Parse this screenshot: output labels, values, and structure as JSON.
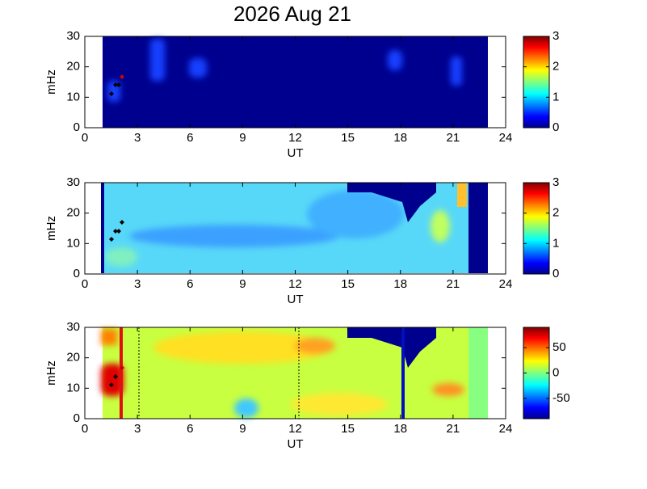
{
  "chart_data": [
    {
      "type": "heatmap",
      "title": "2026 Aug 21",
      "xlabel": "UT",
      "ylabel": "mHz",
      "xlim": [
        0,
        24
      ],
      "xticks": [
        0,
        3,
        6,
        9,
        12,
        15,
        18,
        21,
        24
      ],
      "ylim": [
        0,
        30
      ],
      "yticks": [
        0,
        10,
        20,
        30
      ],
      "clim": [
        0,
        3
      ],
      "cticks": [
        0,
        1,
        2,
        3
      ]
    },
    {
      "type": "heatmap",
      "xlabel": "UT",
      "ylabel": "mHz",
      "xlim": [
        0,
        24
      ],
      "xticks": [
        0,
        3,
        6,
        9,
        12,
        15,
        18,
        21,
        24
      ],
      "ylim": [
        0,
        30
      ],
      "yticks": [
        0,
        10,
        20,
        30
      ],
      "clim": [
        0,
        3
      ],
      "cticks": [
        0,
        1,
        2,
        3
      ]
    },
    {
      "type": "heatmap",
      "xlabel": "UT",
      "ylabel": "mHz",
      "xlim": [
        0,
        24
      ],
      "xticks": [
        0,
        3,
        6,
        9,
        12,
        15,
        18,
        21,
        24
      ],
      "ylim": [
        0,
        30
      ],
      "yticks": [
        0,
        10,
        20,
        30
      ],
      "clim": [
        -90,
        90
      ],
      "cticks": [
        -50,
        0,
        50
      ]
    }
  ]
}
